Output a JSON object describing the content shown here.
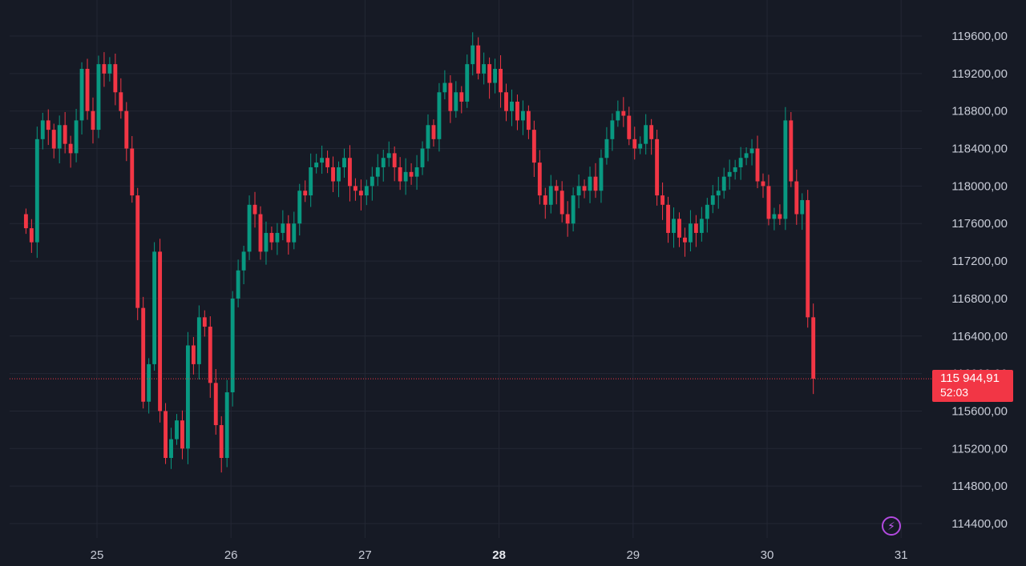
{
  "chart_data": {
    "type": "candlestick",
    "title": "",
    "xlabel": "",
    "ylabel": "",
    "ylim": [
      114250,
      120050
    ],
    "y_ticks": [
      "119600,00",
      "119200,00",
      "118800,00",
      "118400,00",
      "118000,00",
      "117600,00",
      "117200,00",
      "116800,00",
      "116400,00",
      "116000,00",
      "115600,00",
      "115200,00",
      "114800,00",
      "114400,00"
    ],
    "y_tick_values": [
      119600,
      119200,
      118800,
      118400,
      118000,
      117600,
      117200,
      116800,
      116400,
      116000,
      115600,
      115200,
      114800,
      114400
    ],
    "x_ticks": [
      "25",
      "26",
      "27",
      "28",
      "29",
      "30",
      "31"
    ],
    "x_tick_values": [
      24.5,
      25.5,
      26.5,
      27.5,
      28.5,
      29.5,
      30.5
    ],
    "bold_x_tick": "28",
    "grid": true,
    "colors": {
      "up": "#089981",
      "down": "#f23645",
      "background": "#161a25",
      "grid": "#232734",
      "price_line": "#f23645"
    },
    "last_price_value": 115944.91,
    "last_price_label": "115 944,91",
    "countdown": "52:03",
    "candle_interval_hours": 1,
    "start_day": 24.47,
    "closes": [
      117550,
      117400,
      118500,
      118700,
      118600,
      118400,
      118650,
      118450,
      118350,
      118700,
      119250,
      118800,
      118600,
      119300,
      119200,
      119300,
      119000,
      118800,
      118400,
      117900,
      116700,
      115700,
      116100,
      117300,
      115600,
      115100,
      115300,
      115500,
      115200,
      116300,
      116100,
      116600,
      116500,
      115900,
      115450,
      115100,
      115800,
      116800,
      117100,
      117300,
      117800,
      117700,
      117300,
      117500,
      117400,
      117500,
      117600,
      117400,
      117600,
      117950,
      117900,
      118200,
      118250,
      118300,
      118200,
      118050,
      118200,
      118300,
      118000,
      117950,
      117900,
      118000,
      118100,
      118200,
      118300,
      118350,
      118200,
      118050,
      118150,
      118100,
      118200,
      118400,
      118650,
      118500,
      119000,
      119100,
      118800,
      119000,
      118900,
      119300,
      119500,
      119200,
      119300,
      119100,
      119250,
      119000,
      118800,
      118900,
      118700,
      118800,
      118600,
      118250,
      117900,
      117800,
      118000,
      117950,
      117700,
      117600,
      117900,
      118000,
      117950,
      118100,
      117950,
      118300,
      118500,
      118700,
      118800,
      118750,
      118500,
      118400,
      118450,
      118650,
      118500,
      117900,
      117800,
      117500,
      117650,
      117450,
      117400,
      117600,
      117500,
      117650,
      117800,
      117900,
      117950,
      118100,
      118150,
      118200,
      118300,
      118350,
      118400,
      118050,
      118000,
      117650,
      117700,
      117650,
      118700,
      118050,
      117700,
      117850,
      116600,
      115944.91
    ]
  }
}
